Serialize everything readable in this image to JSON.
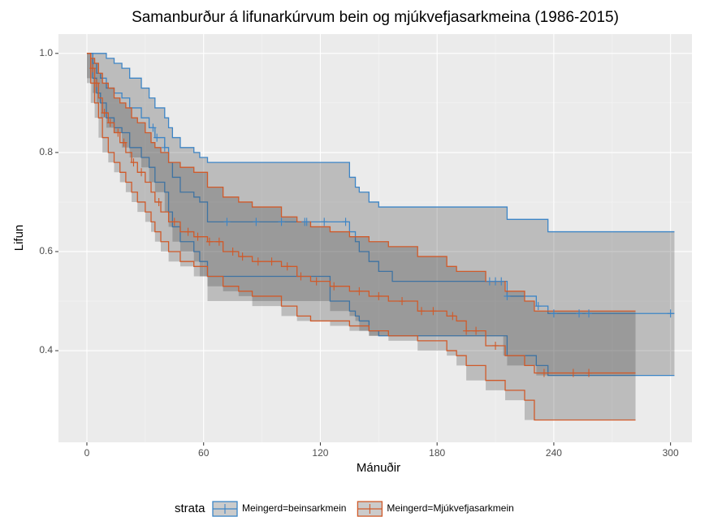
{
  "chart_data": {
    "type": "survival",
    "title": "Samanburður á lifunarkúrvum bein og mjúkvefjasarkmeina (1986-2015)",
    "x_label": "Mánuðir",
    "y_label": "Lifun",
    "legend_title": "strata",
    "legend_position": "bottom",
    "grid": true,
    "xlim": [
      -14.6,
      311
    ],
    "ylim": [
      0.215,
      1.039
    ],
    "xticks": [
      0,
      60,
      120,
      180,
      240,
      300
    ],
    "yticks": [
      0.4,
      0.6,
      0.8,
      {
        "value": 1.0,
        "label": "1.0"
      }
    ],
    "band_color": "rgba(70,70,70,0.28)",
    "series": [
      {
        "name": "Meingerd=beinsarkmein",
        "color": "#3d85c6",
        "x": [
          0,
          3,
          5,
          7,
          10,
          14,
          18,
          22,
          28,
          32,
          35,
          40,
          42,
          44,
          48,
          55,
          58,
          62,
          125,
          135,
          138,
          140,
          145,
          150,
          157,
          214,
          216,
          231,
          237,
          302
        ],
        "values": [
          1.0,
          0.98,
          0.96,
          0.95,
          0.93,
          0.92,
          0.91,
          0.89,
          0.87,
          0.85,
          0.83,
          0.81,
          0.78,
          0.75,
          0.72,
          0.71,
          0.7,
          0.66,
          0.66,
          0.64,
          0.62,
          0.6,
          0.58,
          0.56,
          0.54,
          0.54,
          0.51,
          0.49,
          0.475,
          0.475
        ],
        "upper": [
          1.0,
          1.0,
          1.0,
          1.0,
          0.99,
          0.98,
          0.97,
          0.95,
          0.93,
          0.91,
          0.89,
          0.87,
          0.85,
          0.83,
          0.81,
          0.8,
          0.79,
          0.78,
          0.78,
          0.75,
          0.73,
          0.72,
          0.7,
          0.69,
          0.69,
          0.69,
          0.665,
          0.665,
          0.64,
          0.64
        ],
        "lower": [
          1.0,
          0.95,
          0.92,
          0.9,
          0.87,
          0.85,
          0.84,
          0.81,
          0.79,
          0.77,
          0.74,
          0.72,
          0.68,
          0.65,
          0.62,
          0.6,
          0.58,
          0.55,
          0.5,
          0.48,
          0.47,
          0.46,
          0.44,
          0.43,
          0.43,
          0.43,
          0.39,
          0.37,
          0.35,
          0.35
        ],
        "censor_x": [
          34,
          36,
          40,
          72,
          87,
          100,
          112,
          113,
          122,
          133,
          207,
          210,
          213,
          216,
          232,
          240,
          253,
          258,
          300
        ]
      },
      {
        "name": "Meingerd=Mjúkvefjasarkmein",
        "color": "#d05a2a",
        "x": [
          0,
          2,
          4,
          6,
          8,
          11,
          14,
          17,
          20,
          23,
          26,
          30,
          33,
          35,
          38,
          42,
          48,
          55,
          62,
          70,
          78,
          85,
          100,
          108,
          115,
          125,
          135,
          145,
          155,
          170,
          185,
          190,
          195,
          205,
          215,
          225,
          230,
          282
        ],
        "values": [
          1.0,
          0.97,
          0.94,
          0.91,
          0.88,
          0.86,
          0.84,
          0.82,
          0.8,
          0.78,
          0.76,
          0.74,
          0.72,
          0.7,
          0.68,
          0.66,
          0.64,
          0.63,
          0.62,
          0.6,
          0.59,
          0.58,
          0.57,
          0.55,
          0.54,
          0.53,
          0.52,
          0.51,
          0.5,
          0.48,
          0.47,
          0.46,
          0.44,
          0.41,
          0.39,
          0.37,
          0.355,
          0.355
        ],
        "upper": [
          1.0,
          0.99,
          0.98,
          0.96,
          0.94,
          0.93,
          0.91,
          0.9,
          0.89,
          0.87,
          0.86,
          0.84,
          0.82,
          0.81,
          0.8,
          0.78,
          0.77,
          0.76,
          0.73,
          0.71,
          0.7,
          0.69,
          0.67,
          0.66,
          0.65,
          0.64,
          0.63,
          0.62,
          0.61,
          0.59,
          0.57,
          0.56,
          0.56,
          0.54,
          0.52,
          0.5,
          0.48,
          0.48
        ],
        "lower": [
          1.0,
          0.94,
          0.9,
          0.87,
          0.83,
          0.8,
          0.78,
          0.76,
          0.74,
          0.72,
          0.7,
          0.68,
          0.66,
          0.64,
          0.62,
          0.6,
          0.58,
          0.57,
          0.55,
          0.53,
          0.52,
          0.51,
          0.49,
          0.47,
          0.46,
          0.46,
          0.45,
          0.44,
          0.43,
          0.42,
          0.4,
          0.39,
          0.37,
          0.34,
          0.32,
          0.3,
          0.26,
          0.26
        ],
        "censor_x": [
          3,
          5,
          9,
          12,
          16,
          19,
          24,
          28,
          37,
          45,
          52,
          57,
          63,
          68,
          75,
          80,
          88,
          95,
          103,
          110,
          118,
          127,
          140,
          150,
          162,
          172,
          178,
          188,
          195,
          200,
          210,
          235,
          250,
          258
        ]
      }
    ]
  }
}
